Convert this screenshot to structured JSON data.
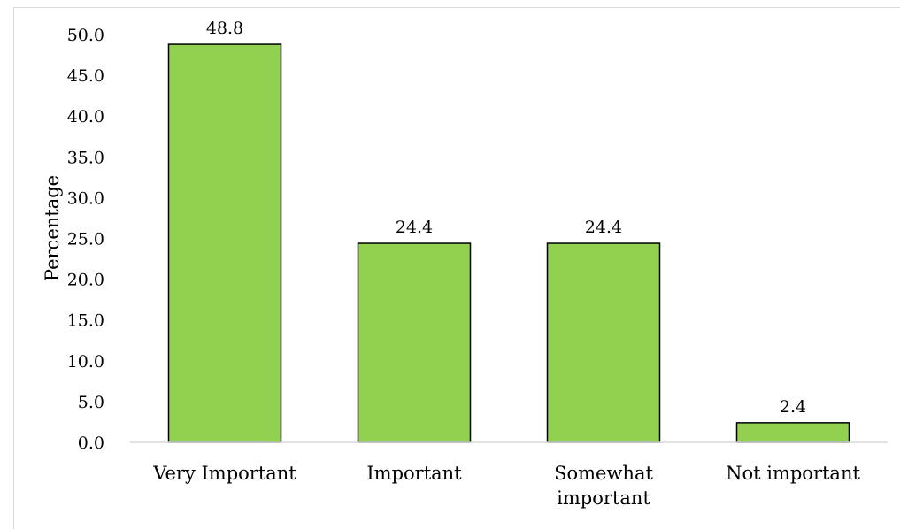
{
  "chart_data": {
    "type": "bar",
    "title": "",
    "xlabel": "",
    "ylabel": "Percentage",
    "ylim": [
      0,
      50
    ],
    "y_ticks": [
      "0.0",
      "5.0",
      "10.0",
      "15.0",
      "20.0",
      "25.0",
      "30.0",
      "35.0",
      "40.0",
      "45.0",
      "50.0"
    ],
    "categories": [
      "Very Important",
      "Important",
      "Somewhat important",
      "Not important"
    ],
    "category_lines": [
      [
        "Very Important"
      ],
      [
        "Important"
      ],
      [
        "Somewhat",
        "important"
      ],
      [
        "Not important"
      ]
    ],
    "values": [
      48.8,
      24.4,
      24.4,
      2.4
    ],
    "data_labels": [
      "48.8",
      "24.4",
      "24.4",
      "2.4"
    ],
    "grid": false,
    "legend": "none",
    "bar_color": "#92d050",
    "bar_edge_color": "#000000"
  }
}
